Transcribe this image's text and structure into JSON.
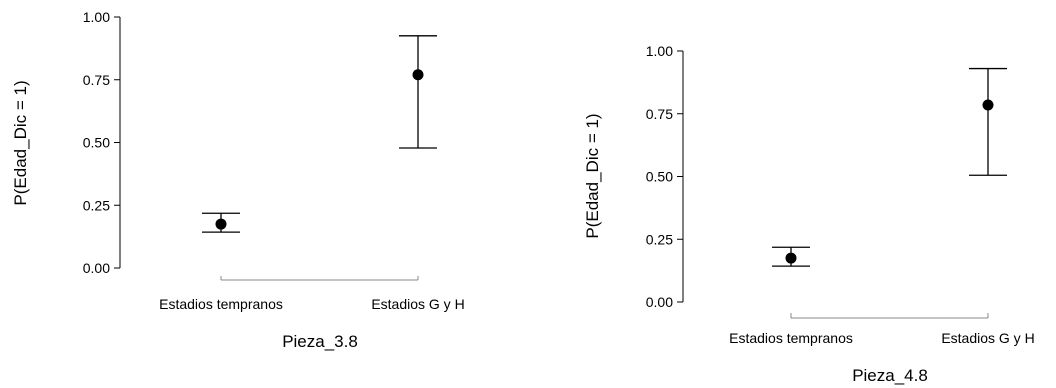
{
  "chart_data": [
    {
      "type": "scatter",
      "categories": [
        "Estadios tempranos",
        "Estadios G y H"
      ],
      "values": [
        0.175,
        0.77
      ],
      "error_low": [
        0.143,
        0.478
      ],
      "error_high": [
        0.218,
        0.925
      ],
      "xlabel": "Pieza_3.8",
      "ylabel": "P(Edad_Dic = 1)",
      "ylim": [
        0,
        1
      ],
      "yticks": [
        "0.00",
        "0.25",
        "0.50",
        "0.75",
        "1.00"
      ],
      "grid": false,
      "legend": "none"
    },
    {
      "type": "scatter",
      "categories": [
        "Estadios tempranos",
        "Estadios G y H"
      ],
      "values": [
        0.175,
        0.785
      ],
      "error_low": [
        0.143,
        0.505
      ],
      "error_high": [
        0.218,
        0.93
      ],
      "xlabel": "Pieza_4.8",
      "ylabel": "P(Edad_Dic = 1)",
      "ylim": [
        0,
        1
      ],
      "yticks": [
        "0.00",
        "0.25",
        "0.50",
        "0.75",
        "1.00"
      ],
      "grid": false,
      "legend": "none"
    }
  ]
}
